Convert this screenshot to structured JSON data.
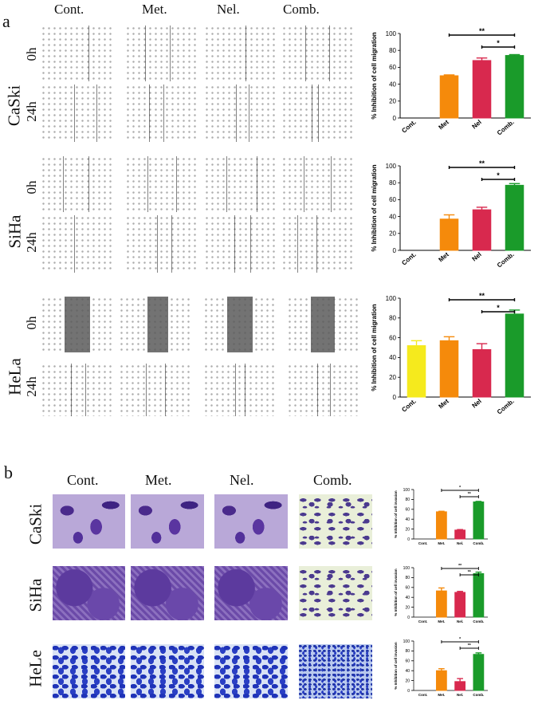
{
  "panel_a": {
    "letter": "a",
    "columns": [
      "Cont.",
      "Met.",
      "Nel.",
      "Comb."
    ],
    "rows": [
      {
        "cell_line": "CaSki",
        "times": [
          "0h",
          "24h"
        ]
      },
      {
        "cell_line": "SiHa",
        "times": [
          "0h",
          "24h"
        ]
      },
      {
        "cell_line": "HeLa",
        "times": [
          "0h",
          "24h"
        ]
      }
    ]
  },
  "panel_b": {
    "letter": "b",
    "columns": [
      "Cont.",
      "Met.",
      "Nel.",
      "Comb."
    ],
    "rows": [
      {
        "cell_line": "CaSki"
      },
      {
        "cell_line": "SiHa"
      },
      {
        "cell_line": "HeLe"
      }
    ]
  },
  "colors": {
    "yellow": "#f5ea1d",
    "orange": "#f58a0b",
    "red": "#d8294e",
    "green": "#1a9b2a"
  },
  "chart_data": [
    {
      "id": "a-caski",
      "type": "bar",
      "ylabel": "% Inhibition of cell migration",
      "categories": [
        "Cont.",
        "Met",
        "Nel",
        "Comb."
      ],
      "values": [
        0,
        50,
        68,
        74
      ],
      "errors": [
        0,
        1,
        3,
        1
      ],
      "colors": [
        "#ffffff",
        "#f58a0b",
        "#d8294e",
        "#1a9b2a"
      ],
      "ylim": [
        0,
        100
      ],
      "yticks": [
        0,
        20,
        40,
        60,
        80,
        100
      ],
      "brackets": [
        {
          "from": 1,
          "to": 3,
          "label": "**"
        },
        {
          "from": 2,
          "to": 3,
          "label": "*"
        }
      ]
    },
    {
      "id": "a-siha",
      "type": "bar",
      "ylabel": "% Inhibition of cell migration",
      "categories": [
        "Cont.",
        "Met",
        "Nel",
        "Comb."
      ],
      "values": [
        0,
        37,
        48,
        77
      ],
      "errors": [
        0,
        5,
        3,
        2
      ],
      "colors": [
        "#ffffff",
        "#f58a0b",
        "#d8294e",
        "#1a9b2a"
      ],
      "ylim": [
        0,
        100
      ],
      "yticks": [
        0,
        20,
        40,
        60,
        80,
        100
      ],
      "brackets": [
        {
          "from": 1,
          "to": 3,
          "label": "**"
        },
        {
          "from": 2,
          "to": 3,
          "label": "*"
        }
      ]
    },
    {
      "id": "a-hela",
      "type": "bar",
      "ylabel": "% Inhibition of cell migration",
      "categories": [
        "Cont.",
        "Met",
        "Nel",
        "Comb."
      ],
      "values": [
        52,
        57,
        48,
        84
      ],
      "errors": [
        5,
        4,
        6,
        4
      ],
      "colors": [
        "#f5ea1d",
        "#f58a0b",
        "#d8294e",
        "#1a9b2a"
      ],
      "ylim": [
        0,
        100
      ],
      "yticks": [
        0,
        20,
        40,
        60,
        80,
        100
      ],
      "brackets": [
        {
          "from": 1,
          "to": 3,
          "label": "**"
        },
        {
          "from": 2,
          "to": 3,
          "label": "*"
        }
      ]
    },
    {
      "id": "b-caski",
      "type": "bar",
      "ylabel": "% Inhibition of cell invasion",
      "categories": [
        "Cont.",
        "Met.",
        "Nel.",
        "Comb."
      ],
      "values": [
        0,
        55,
        18,
        75
      ],
      "errors": [
        0,
        1,
        1,
        1
      ],
      "colors": [
        "#ffffff",
        "#f58a0b",
        "#d8294e",
        "#1a9b2a"
      ],
      "ylim": [
        0,
        100
      ],
      "yticks": [
        0,
        20,
        40,
        60,
        80,
        100
      ],
      "brackets": [
        {
          "from": 1,
          "to": 3,
          "label": "*"
        },
        {
          "from": 2,
          "to": 3,
          "label": "**"
        }
      ]
    },
    {
      "id": "b-siha",
      "type": "bar",
      "ylabel": "% Inhibition of cell invasion",
      "categories": [
        "Cont.",
        "Met.",
        "Nel.",
        "Comb."
      ],
      "values": [
        0,
        53,
        50,
        88
      ],
      "errors": [
        0,
        6,
        2,
        3
      ],
      "colors": [
        "#ffffff",
        "#f58a0b",
        "#d8294e",
        "#1a9b2a"
      ],
      "ylim": [
        0,
        100
      ],
      "yticks": [
        0,
        20,
        40,
        60,
        80,
        100
      ],
      "brackets": [
        {
          "from": 1,
          "to": 3,
          "label": "**"
        },
        {
          "from": 2,
          "to": 3,
          "label": "**"
        }
      ]
    },
    {
      "id": "b-hela",
      "type": "bar",
      "ylabel": "% Inhibition of cell invasion",
      "categories": [
        "Cont.",
        "Met.",
        "Nel.",
        "Comb."
      ],
      "values": [
        0,
        40,
        18,
        73
      ],
      "errors": [
        0,
        4,
        6,
        3
      ],
      "colors": [
        "#ffffff",
        "#f58a0b",
        "#d8294e",
        "#1a9b2a"
      ],
      "ylim": [
        0,
        100
      ],
      "yticks": [
        0,
        20,
        40,
        60,
        80,
        100
      ],
      "brackets": [
        {
          "from": 1,
          "to": 3,
          "label": "*"
        },
        {
          "from": 2,
          "to": 3,
          "label": "**"
        }
      ]
    }
  ]
}
